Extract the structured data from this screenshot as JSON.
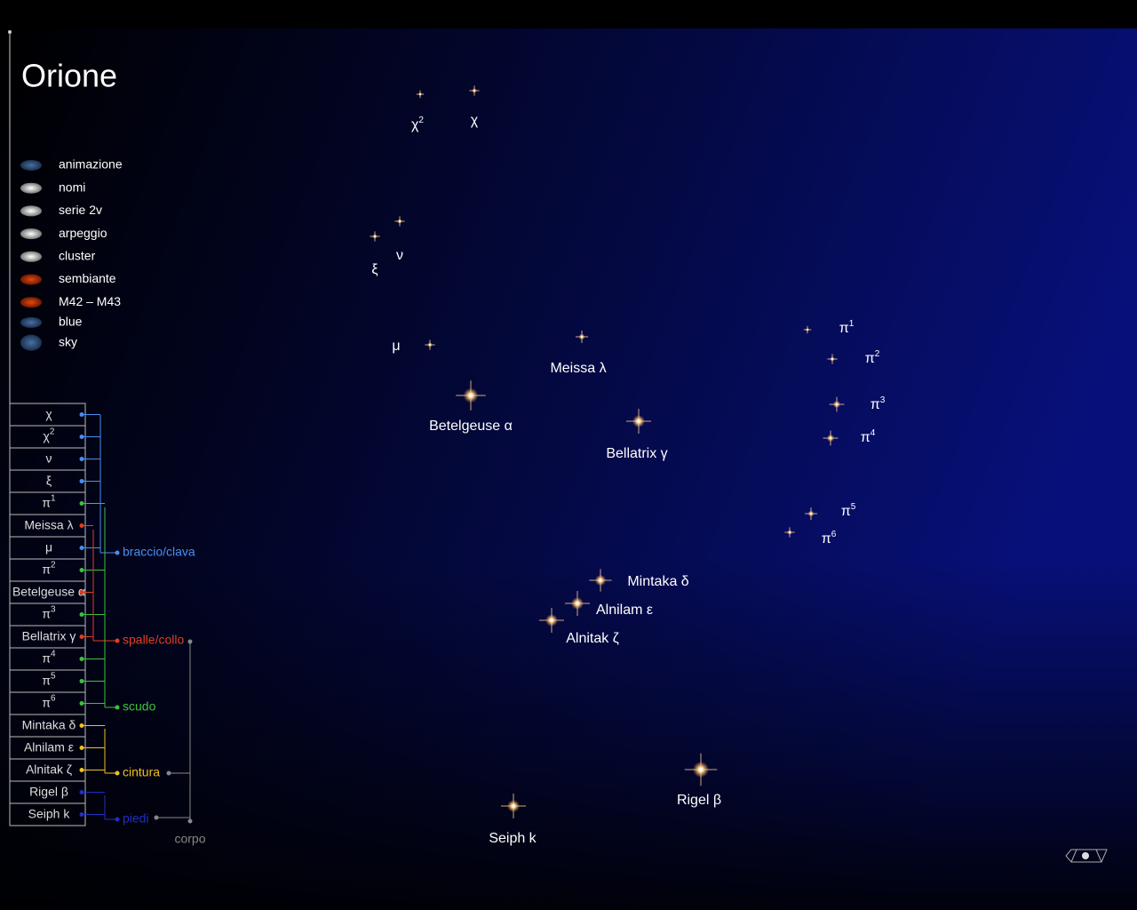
{
  "title": "Orione",
  "menu": [
    "animazione",
    "nomi",
    "serie 2v",
    "arpeggio",
    "cluster",
    "sembiante",
    "M42 – M43",
    "blue",
    "sky"
  ],
  "stars": [
    {
      "base": "χ"
    },
    {
      "base": "χ",
      "sup": "2"
    },
    {
      "base": "ν"
    },
    {
      "base": "ξ"
    },
    {
      "base": "π",
      "sup": "1"
    },
    {
      "base": "Meissa λ"
    },
    {
      "base": "μ"
    },
    {
      "base": "π",
      "sup": "2"
    },
    {
      "base": "Betelgeuse α"
    },
    {
      "base": "π",
      "sup": "3"
    },
    {
      "base": "Bellatrix γ"
    },
    {
      "base": "π",
      "sup": "4"
    },
    {
      "base": "π",
      "sup": "5"
    },
    {
      "base": "π",
      "sup": "6"
    },
    {
      "base": "Mintaka δ"
    },
    {
      "base": "Alnilam ε"
    },
    {
      "base": "Alnitak ζ"
    },
    {
      "base": "Rigel β"
    },
    {
      "base": "Seiph k"
    }
  ],
  "groups": [
    "braccio/clava",
    "spalle/collo",
    "scudo",
    "cintura",
    "piedi",
    "corpo"
  ]
}
